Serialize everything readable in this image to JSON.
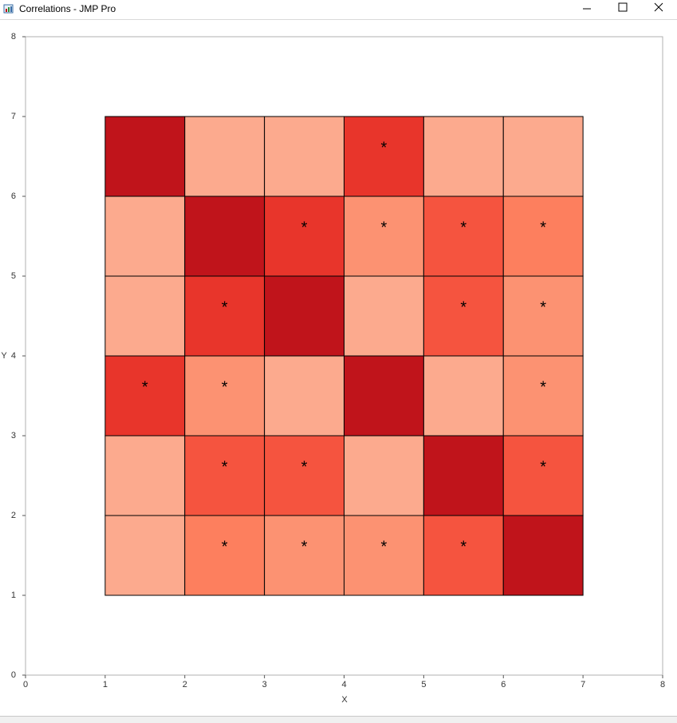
{
  "window": {
    "title": "Correlations - JMP Pro"
  },
  "chart_data": {
    "type": "heatmap",
    "xlabel": "X",
    "ylabel": "Y",
    "xlim": [
      0,
      8
    ],
    "ylim": [
      0,
      8
    ],
    "xticks": [
      0,
      1,
      2,
      3,
      4,
      5,
      6,
      7,
      8
    ],
    "yticks": [
      0,
      1,
      2,
      3,
      4,
      5,
      6,
      7,
      8
    ],
    "xbins": [
      1,
      2,
      3,
      4,
      5,
      6,
      7
    ],
    "ybins": [
      7,
      6,
      5,
      4,
      3,
      2,
      1
    ],
    "values": [
      [
        1,
        0.2,
        0.2,
        0.75,
        0.2,
        0.2
      ],
      [
        0.2,
        1,
        0.75,
        0.4,
        0.6,
        0.5
      ],
      [
        0.2,
        0.75,
        1,
        0.2,
        0.6,
        0.4
      ],
      [
        0.75,
        0.4,
        0.2,
        1,
        0.2,
        0.4
      ],
      [
        0.2,
        0.6,
        0.6,
        0.2,
        1,
        0.6
      ],
      [
        0.2,
        0.5,
        0.4,
        0.4,
        0.6,
        1
      ]
    ],
    "colors": [
      [
        "#c0141b",
        "#fcaa8e",
        "#fcaa8e",
        "#e8352b",
        "#fcaa8e",
        "#fcaa8e"
      ],
      [
        "#fcaa8e",
        "#c0141b",
        "#e8352b",
        "#fc9272",
        "#f5543f",
        "#fd7f5e"
      ],
      [
        "#fcaa8e",
        "#e8352b",
        "#c0141b",
        "#fcaa8e",
        "#f5543f",
        "#fc9272"
      ],
      [
        "#e8352b",
        "#fc9272",
        "#fcaa8e",
        "#c0141b",
        "#fcaa8e",
        "#fc9272"
      ],
      [
        "#fcaa8e",
        "#f5543f",
        "#f5543f",
        "#fcaa8e",
        "#c0141b",
        "#f5543f"
      ],
      [
        "#fcaa8e",
        "#fd7f5e",
        "#fc9272",
        "#fc9272",
        "#f5543f",
        "#c0141b"
      ]
    ],
    "stars": [
      [
        null,
        null,
        null,
        "*",
        null,
        null
      ],
      [
        null,
        null,
        "*",
        "*",
        "*",
        "*"
      ],
      [
        null,
        "*",
        null,
        null,
        "*",
        "*"
      ],
      [
        "*",
        "*",
        null,
        null,
        null,
        "*"
      ],
      [
        null,
        "*",
        "*",
        null,
        null,
        "*"
      ],
      [
        null,
        "*",
        "*",
        "*",
        "*",
        null
      ]
    ]
  }
}
